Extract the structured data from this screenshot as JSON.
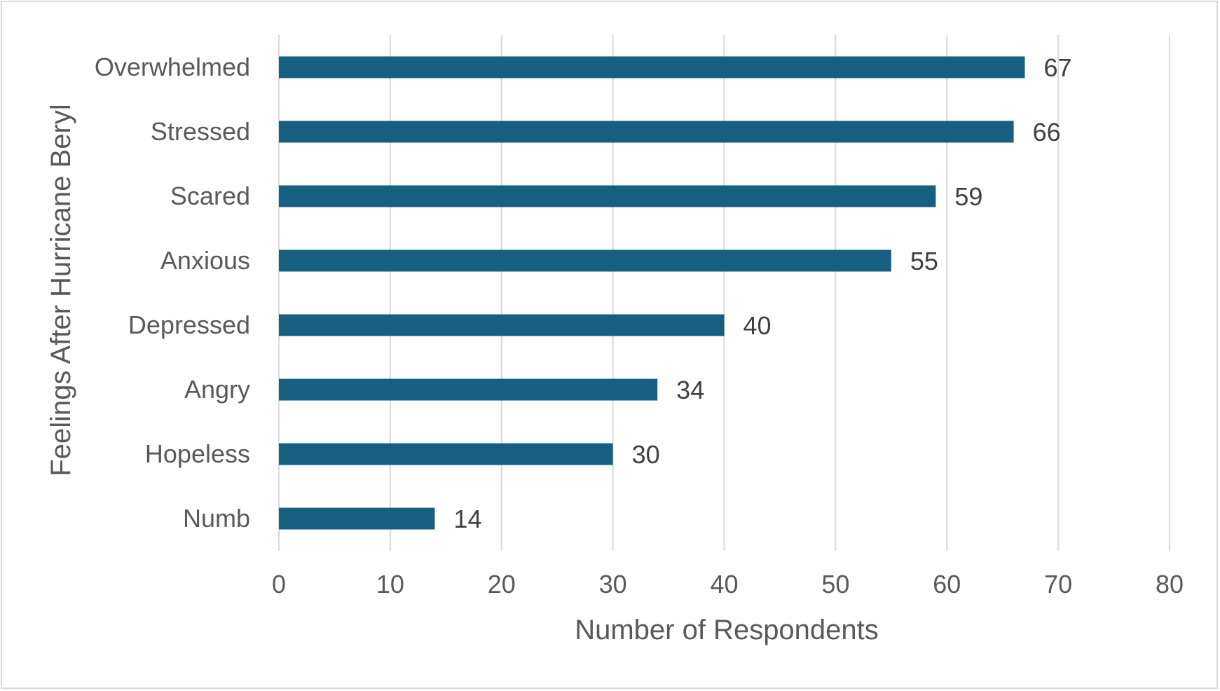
{
  "chart_data": {
    "type": "bar",
    "orientation": "horizontal",
    "categories": [
      "Overwhelmed",
      "Stressed",
      "Scared",
      "Anxious",
      "Depressed",
      "Angry",
      "Hopeless",
      "Numb"
    ],
    "values": [
      67,
      66,
      59,
      55,
      40,
      34,
      30,
      14
    ],
    "xlabel": "Number of Respondents",
    "ylabel": "Feelings After Hurricane Beryl",
    "xlim": [
      0,
      80
    ],
    "xticks": [
      0,
      10,
      20,
      30,
      40,
      50,
      60,
      70,
      80
    ],
    "grid": "vertical",
    "data_labels": true,
    "legend": "none",
    "colors": {
      "bar": "#165f80",
      "grid": "#d9d9d9",
      "text": "#595959"
    }
  }
}
